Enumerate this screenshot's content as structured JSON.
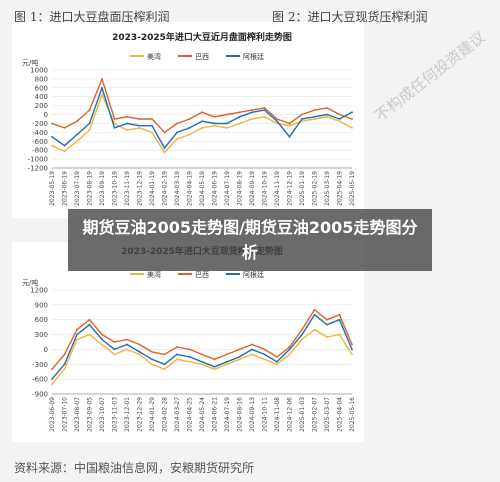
{
  "figure_labels": {
    "left": "图 1：进口大豆盘面压榨利润",
    "right": "图 2：进口大豆现货压榨利润"
  },
  "overlay_title": "期货豆油2005走势图/期货豆油2005走势图分析",
  "watermark_text": "不构成任何投资建议",
  "footer": "资料来源：中国粮油信息网，安粮期货研究所",
  "colors": {
    "usa": "#f2b33d",
    "brazil": "#e0602b",
    "argentina": "#1f6fb0",
    "grid": "#e2e2e2",
    "axis_text": "#444444"
  },
  "chart_data": [
    {
      "type": "line",
      "title": "2023-2025年进口大豆近月盘面榨利走势图",
      "ylabel": "元/吨",
      "ylim": [
        -1200,
        1000
      ],
      "yticks": [
        1000,
        800,
        600,
        400,
        200,
        0,
        -200,
        -400,
        -600,
        -800,
        -1000,
        -1200
      ],
      "x": [
        "2023-05-19",
        "2023-06-19",
        "2023-07-19",
        "2023-08-19",
        "2023-09-19",
        "2023-10-19",
        "2023-11-19",
        "2023-12-19",
        "2024-01-19",
        "2024-02-19",
        "2024-03-19",
        "2024-04-19",
        "2024-05-19",
        "2024-06-19",
        "2024-07-19",
        "2024-08-19",
        "2024-09-19",
        "2024-10-19",
        "2024-11-19",
        "2024-12-19",
        "2025-01-19",
        "2025-02-19",
        "2025-03-19",
        "2025-04-19",
        "2025-05-19"
      ],
      "series": [
        {
          "name": "美湾",
          "values": [
            -700,
            -820,
            -600,
            -350,
            450,
            -200,
            -350,
            -300,
            -400,
            -850,
            -550,
            -450,
            -300,
            -250,
            -300,
            -200,
            -100,
            -50,
            -200,
            -250,
            -150,
            -100,
            -50,
            -150,
            -300
          ]
        },
        {
          "name": "巴西",
          "values": [
            -200,
            -300,
            -150,
            100,
            800,
            -100,
            -50,
            -100,
            -100,
            -400,
            -200,
            -100,
            50,
            -50,
            0,
            50,
            100,
            150,
            -100,
            -200,
            0,
            100,
            150,
            0,
            -100
          ]
        },
        {
          "name": "阿根廷",
          "values": [
            -500,
            -700,
            -450,
            -200,
            600,
            -300,
            -200,
            -250,
            -250,
            -750,
            -400,
            -300,
            -150,
            -200,
            -200,
            -50,
            50,
            100,
            -150,
            -500,
            -100,
            -50,
            0,
            -100,
            50
          ]
        }
      ],
      "legend_position": "top-center",
      "grid": true
    },
    {
      "type": "line",
      "title": "2023-2025年进口大豆现货榨利走势图",
      "ylabel": "元/吨",
      "ylim": [
        -900,
        1200
      ],
      "yticks": [
        1200,
        900,
        600,
        300,
        0,
        -300,
        -600,
        -900
      ],
      "x": [
        "2023-06-09",
        "2023-07-10",
        "2023-08-07",
        "2023-09-05",
        "2023-10-07",
        "2023-11-03",
        "2023-12-01",
        "2023-12-29",
        "2024-01-29",
        "2024-02-28",
        "2024-03-27",
        "2024-04-25",
        "2024-05-24",
        "2024-06-21",
        "2024-07-19",
        "2024-08-16",
        "2024-09-13",
        "2024-10-11",
        "2024-11-08",
        "2024-12-06",
        "2025-01-03",
        "2025-02-07",
        "2025-03-07",
        "2025-04-04",
        "2025-05-16"
      ],
      "series": [
        {
          "name": "美湾",
          "values": [
            -700,
            -400,
            200,
            300,
            100,
            -100,
            0,
            -100,
            -300,
            -400,
            -200,
            -250,
            -300,
            -400,
            -300,
            -200,
            -100,
            -200,
            -300,
            -100,
            200,
            400,
            250,
            300,
            -100
          ]
        },
        {
          "name": "巴西",
          "values": [
            -400,
            -100,
            400,
            600,
            300,
            150,
            200,
            100,
            -50,
            -100,
            50,
            0,
            -100,
            -200,
            -100,
            0,
            100,
            0,
            -150,
            50,
            400,
            800,
            600,
            700,
            100
          ]
        },
        {
          "name": "阿根廷",
          "values": [
            -600,
            -300,
            300,
            500,
            200,
            0,
            100,
            -50,
            -200,
            -300,
            -100,
            -150,
            -250,
            -350,
            -250,
            -150,
            0,
            -100,
            -250,
            0,
            300,
            700,
            500,
            600,
            0
          ]
        }
      ],
      "legend_position": "top-center",
      "grid": true
    }
  ]
}
